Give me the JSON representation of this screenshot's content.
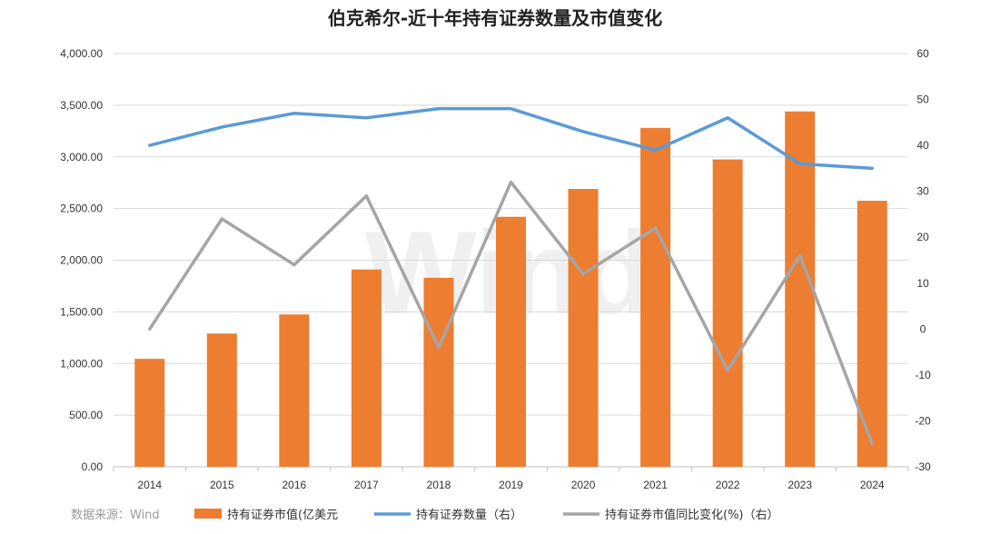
{
  "chart_data": {
    "type": "bar",
    "title": "伯克希尔-近十年持有证券数量及市值变化",
    "categories": [
      "2014",
      "2015",
      "2016",
      "2017",
      "2018",
      "2019",
      "2020",
      "2021",
      "2022",
      "2023",
      "2024"
    ],
    "y_left": {
      "ylim": [
        0,
        4000
      ],
      "ticks": [
        "0.00",
        "500.00",
        "1,000.00",
        "1,500.00",
        "2,000.00",
        "2,500.00",
        "3,000.00",
        "3,500.00",
        "4,000.00"
      ]
    },
    "y_right": {
      "ylim": [
        -30,
        60
      ],
      "ticks": [
        "-30",
        "-20",
        "-10",
        "0",
        "10",
        "20",
        "30",
        "40",
        "50",
        "60"
      ]
    },
    "series": [
      {
        "name": "持有证券市值(亿美元",
        "type": "bar",
        "axis": "left",
        "color": "#ed7d31",
        "values": [
          1045,
          1290,
          1475,
          1910,
          1830,
          2420,
          2690,
          3280,
          2975,
          3440,
          2575
        ]
      },
      {
        "name": "持有证券数量（右）",
        "type": "line",
        "axis": "right",
        "color": "#5b9bd5",
        "values": [
          40,
          44,
          47,
          46,
          48,
          48,
          43,
          39,
          46,
          36,
          35
        ]
      },
      {
        "name": "持有证券市值同比变化(%)（右）",
        "type": "line",
        "axis": "right",
        "color": "#a5a5a5",
        "values": [
          0,
          24,
          14,
          29,
          -4,
          32,
          12,
          22,
          -9,
          16,
          -25
        ]
      }
    ],
    "grid": true,
    "legend": "bottom"
  },
  "source": "数据来源：Wind",
  "watermark": "Wind"
}
